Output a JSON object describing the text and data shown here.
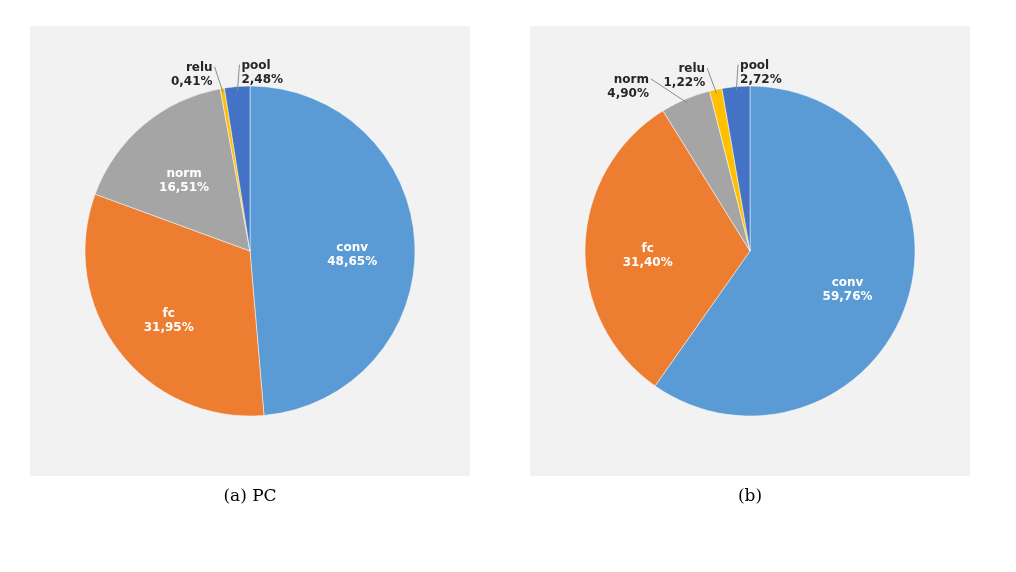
{
  "chart_data": [
    {
      "type": "pie",
      "title": "(a) PC",
      "categories": [
        "conv",
        "fc",
        "norm",
        "relu",
        "pool"
      ],
      "values": [
        48.65,
        31.95,
        16.51,
        0.41,
        2.48
      ],
      "value_labels": [
        "48,65%",
        "31,95%",
        "16,51%",
        "0,41%",
        "2,48%"
      ],
      "colors": [
        "#5b9bd5",
        "#ed7d31",
        "#a5a5a5",
        "#ffc000",
        "#4472c4"
      ],
      "legend": false
    },
    {
      "type": "pie",
      "title": "(b)",
      "categories": [
        "conv",
        "fc",
        "norm",
        "relu",
        "pool"
      ],
      "values": [
        59.76,
        31.4,
        4.9,
        1.22,
        2.72
      ],
      "value_labels": [
        "59,76%",
        "31,40%",
        "4,90%",
        "1,22%",
        "2,72%"
      ],
      "colors": [
        "#5b9bd5",
        "#ed7d31",
        "#a5a5a5",
        "#ffc000",
        "#4472c4"
      ],
      "legend": false
    }
  ]
}
